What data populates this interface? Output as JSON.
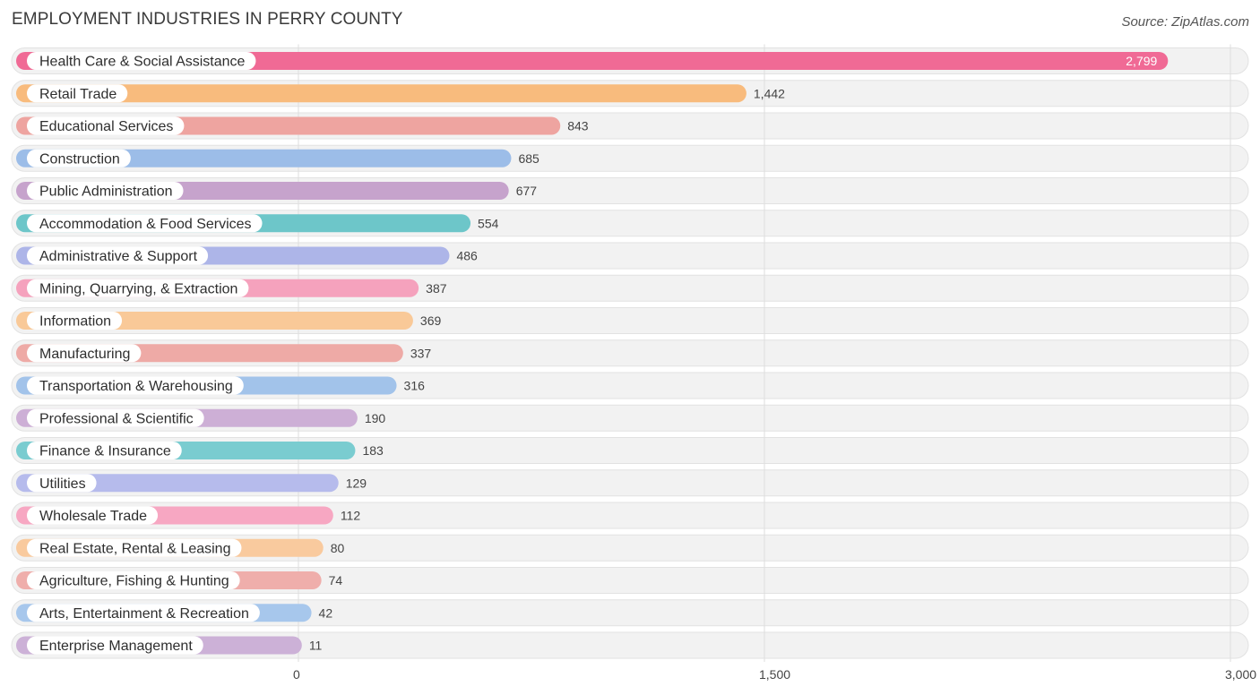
{
  "header": {
    "title": "EMPLOYMENT INDUSTRIES IN PERRY COUNTY",
    "source": "Source: ZipAtlas.com"
  },
  "chart_data": {
    "type": "bar",
    "orientation": "horizontal",
    "title": "EMPLOYMENT INDUSTRIES IN PERRY COUNTY",
    "xlim": [
      0,
      3000
    ],
    "xticks": [
      {
        "value": 0,
        "label": "0"
      },
      {
        "value": 1500,
        "label": "1,500"
      },
      {
        "value": 3000,
        "label": "3,000"
      }
    ],
    "grid": true,
    "categories": [
      "Health Care & Social Assistance",
      "Retail Trade",
      "Educational Services",
      "Construction",
      "Public Administration",
      "Accommodation & Food Services",
      "Administrative & Support",
      "Mining, Quarrying, & Extraction",
      "Information",
      "Manufacturing",
      "Transportation & Warehousing",
      "Professional & Scientific",
      "Finance & Insurance",
      "Utilities",
      "Wholesale Trade",
      "Real Estate, Rental & Leasing",
      "Agriculture, Fishing & Hunting",
      "Arts, Entertainment & Recreation",
      "Enterprise Management"
    ],
    "values": [
      2799,
      1442,
      843,
      685,
      677,
      554,
      486,
      387,
      369,
      337,
      316,
      190,
      183,
      129,
      112,
      80,
      74,
      42,
      11
    ],
    "value_labels": [
      "2,799",
      "1,442",
      "843",
      "685",
      "677",
      "554",
      "486",
      "387",
      "369",
      "337",
      "316",
      "190",
      "183",
      "129",
      "112",
      "80",
      "74",
      "42",
      "11"
    ],
    "colors": [
      "#f06a95",
      "#f8bb7d",
      "#eea4a0",
      "#9cbde8",
      "#c6a3cc",
      "#6dc6c9",
      "#adb5e8",
      "#f5a2bd",
      "#f9c998",
      "#eeaaa6",
      "#a2c3ea",
      "#cdafd6",
      "#7accd0",
      "#b6bbec",
      "#f7a7c2",
      "#f9ca9e",
      "#efaeab",
      "#a7c7ec",
      "#ccb1d7"
    ]
  }
}
